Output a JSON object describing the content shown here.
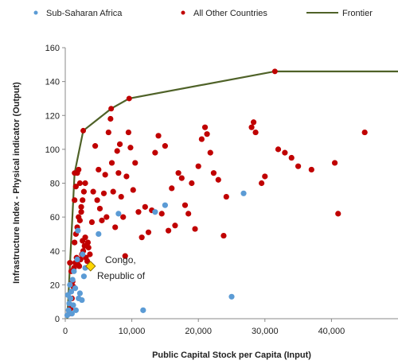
{
  "chart_data": {
    "type": "scatter",
    "xlabel": "Public Capital Stock per Capita (Input)",
    "ylabel": "Infrastructure Index - Physical indicator (Output)",
    "xlim": [
      0,
      50000
    ],
    "ylim": [
      0,
      160
    ],
    "xticks": [
      "0",
      "10,000",
      "20,000",
      "30,000",
      "40,000"
    ],
    "yticks": [
      "0",
      "20",
      "40",
      "60",
      "80",
      "100",
      "120",
      "140",
      "160"
    ],
    "grid": false,
    "legend_position": "top",
    "annotation": {
      "text_line1": "Congo,",
      "text_line2": "Republic of",
      "x": 3800,
      "y": 30
    },
    "series": [
      {
        "name": "Sub-Saharan Africa",
        "marker": "circle",
        "color": "#5b9bd5",
        "points": [
          [
            300,
            2
          ],
          [
            500,
            5
          ],
          [
            700,
            20
          ],
          [
            800,
            12
          ],
          [
            1000,
            3
          ],
          [
            1200,
            8
          ],
          [
            1500,
            18
          ],
          [
            1600,
            5
          ],
          [
            2000,
            12
          ],
          [
            2200,
            15
          ],
          [
            2500,
            11
          ],
          [
            2800,
            25
          ],
          [
            3000,
            30
          ],
          [
            1800,
            35
          ],
          [
            1900,
            52
          ],
          [
            5000,
            50
          ],
          [
            8000,
            62
          ],
          [
            11700,
            5
          ],
          [
            13500,
            63
          ],
          [
            15000,
            67
          ],
          [
            25000,
            13
          ],
          [
            26800,
            74
          ],
          [
            1300,
            28
          ],
          [
            2600,
            38
          ],
          [
            900,
            16
          ],
          [
            1100,
            23
          ],
          [
            600,
            9
          ],
          [
            400,
            14
          ]
        ]
      },
      {
        "name": "All Other Countries",
        "marker": "circle",
        "color": "#c00000",
        "points": [
          [
            700,
            33
          ],
          [
            900,
            28
          ],
          [
            1100,
            22
          ],
          [
            1300,
            30
          ],
          [
            1500,
            33
          ],
          [
            1700,
            36
          ],
          [
            1900,
            32
          ],
          [
            2100,
            31
          ],
          [
            2300,
            35
          ],
          [
            2500,
            38
          ],
          [
            2700,
            40
          ],
          [
            2900,
            43
          ],
          [
            3100,
            36
          ],
          [
            3300,
            34
          ],
          [
            3500,
            42
          ],
          [
            3700,
            38
          ],
          [
            1200,
            19
          ],
          [
            1000,
            12
          ],
          [
            800,
            6
          ],
          [
            600,
            3
          ],
          [
            1400,
            45
          ],
          [
            1600,
            50
          ],
          [
            1800,
            54
          ],
          [
            2000,
            60
          ],
          [
            2200,
            58
          ],
          [
            2400,
            63
          ],
          [
            2600,
            70
          ],
          [
            2800,
            75
          ],
          [
            3000,
            80
          ],
          [
            1400,
            70
          ],
          [
            1600,
            78
          ],
          [
            1800,
            86
          ],
          [
            2000,
            88
          ],
          [
            2200,
            80
          ],
          [
            2400,
            66
          ],
          [
            2600,
            46
          ],
          [
            3000,
            48
          ],
          [
            3400,
            45
          ],
          [
            4000,
            57
          ],
          [
            4200,
            75
          ],
          [
            4500,
            102
          ],
          [
            4800,
            70
          ],
          [
            5000,
            88
          ],
          [
            5200,
            65
          ],
          [
            5500,
            58
          ],
          [
            5800,
            74
          ],
          [
            6000,
            85
          ],
          [
            6200,
            60
          ],
          [
            6500,
            110
          ],
          [
            6800,
            118
          ],
          [
            7000,
            92
          ],
          [
            7200,
            75
          ],
          [
            7500,
            54
          ],
          [
            7800,
            99
          ],
          [
            8000,
            86
          ],
          [
            8200,
            103
          ],
          [
            8400,
            72
          ],
          [
            8700,
            60
          ],
          [
            9000,
            37
          ],
          [
            9200,
            84
          ],
          [
            9500,
            110
          ],
          [
            9800,
            101
          ],
          [
            10200,
            76
          ],
          [
            10500,
            92
          ],
          [
            11000,
            63
          ],
          [
            11500,
            48
          ],
          [
            12000,
            66
          ],
          [
            12500,
            51
          ],
          [
            13000,
            64
          ],
          [
            13500,
            98
          ],
          [
            14000,
            108
          ],
          [
            14500,
            62
          ],
          [
            15000,
            102
          ],
          [
            15500,
            52
          ],
          [
            16000,
            77
          ],
          [
            16500,
            55
          ],
          [
            17000,
            86
          ],
          [
            17500,
            83
          ],
          [
            18000,
            67
          ],
          [
            18500,
            62
          ],
          [
            19000,
            80
          ],
          [
            19500,
            53
          ],
          [
            20000,
            90
          ],
          [
            20500,
            106
          ],
          [
            21000,
            113
          ],
          [
            21300,
            109
          ],
          [
            21800,
            98
          ],
          [
            22300,
            86
          ],
          [
            23000,
            82
          ],
          [
            23800,
            49
          ],
          [
            24200,
            72
          ],
          [
            28000,
            113
          ],
          [
            28300,
            116
          ],
          [
            28600,
            110
          ],
          [
            29500,
            80
          ],
          [
            30000,
            84
          ],
          [
            32000,
            100
          ],
          [
            33000,
            98
          ],
          [
            34000,
            95
          ],
          [
            35000,
            90
          ],
          [
            37000,
            88
          ],
          [
            40500,
            92
          ],
          [
            41000,
            62
          ],
          [
            45000,
            110
          ]
        ]
      },
      {
        "name": "Frontier",
        "type": "line",
        "color": "#4f6228",
        "points": [
          [
            300,
            0
          ],
          [
            1400,
            86
          ],
          [
            2700,
            111
          ],
          [
            6900,
            124
          ],
          [
            9600,
            130
          ],
          [
            31500,
            146
          ],
          [
            50000,
            146
          ]
        ]
      }
    ],
    "highlight": {
      "x": 3800,
      "y": 31,
      "marker": "diamond",
      "color": "#ffd700"
    }
  }
}
